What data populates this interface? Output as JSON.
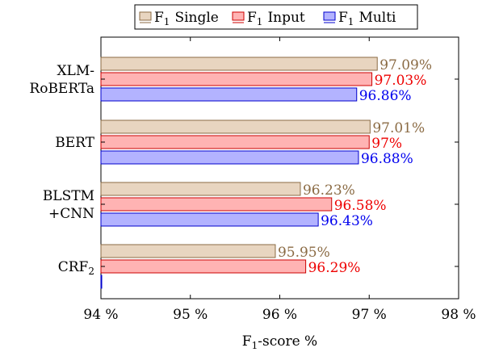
{
  "chart_data": {
    "type": "bar",
    "orientation": "horizontal",
    "categories": [
      [
        "XLM-",
        "RoBERTa"
      ],
      [
        "BERT"
      ],
      [
        "BLSTM",
        "+CNN"
      ],
      [
        "CRF",
        "2"
      ]
    ],
    "series": [
      {
        "name": "F1 Single",
        "name_main": "F",
        "name_sub": "1",
        "name_rest": "Single",
        "color_fill": "#e8d5c0",
        "color_stroke": "#8b6b44",
        "label_color": "#8b6b44",
        "values": [
          97.09,
          97.01,
          96.23,
          95.95
        ],
        "labels": [
          "97.09%",
          "97.01%",
          "96.23%",
          "95.95%"
        ]
      },
      {
        "name": "F1 Input",
        "name_main": "F",
        "name_sub": "1",
        "name_rest": "Input",
        "color_fill": "#ffb3b3",
        "color_stroke": "#cc0000",
        "label_color": "#ee0000",
        "values": [
          97.03,
          97.0,
          96.58,
          96.29
        ],
        "labels": [
          "97.03%",
          "97%",
          "96.58%",
          "96.29%"
        ]
      },
      {
        "name": "F1 Multi",
        "name_main": "F",
        "name_sub": "1",
        "name_rest": "Multi",
        "color_fill": "#b3b3ff",
        "color_stroke": "#0000cc",
        "label_color": "#0000ee",
        "values": [
          96.86,
          96.88,
          96.43,
          94.0
        ],
        "labels": [
          "96.86%",
          "96.88%",
          "96.43%",
          ""
        ]
      }
    ],
    "xlim": [
      94,
      98
    ],
    "xticks": [
      94,
      95,
      96,
      97,
      98
    ],
    "xtick_labels": [
      "94 %",
      "95 %",
      "96 %",
      "97 %",
      "98 %"
    ],
    "xlabel_main": "F",
    "xlabel_sub": "1",
    "xlabel_rest": "-score %",
    "legend_position": "top-center",
    "grid": false
  }
}
